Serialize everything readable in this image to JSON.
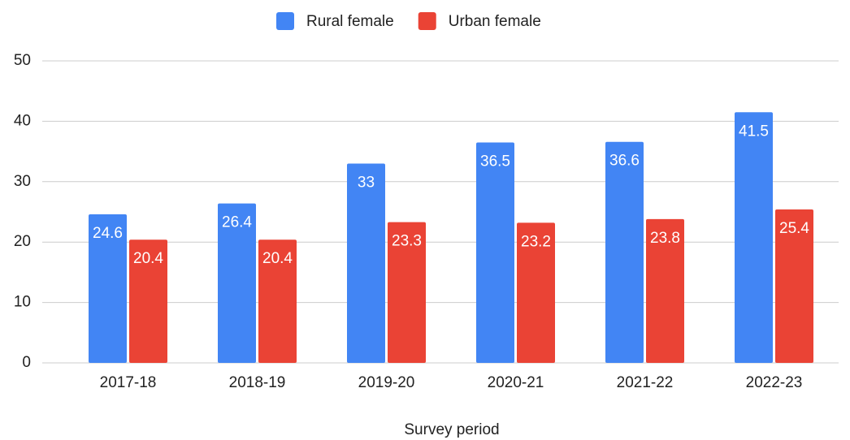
{
  "chart_data": {
    "type": "bar",
    "x_label": "Survey period",
    "categories": [
      "2017-18",
      "2018-19",
      "2019-20",
      "2020-21",
      "2021-22",
      "2022-23"
    ],
    "series": [
      {
        "name": "Rural female",
        "color": "#4285f4",
        "values": [
          24.6,
          26.4,
          33,
          36.5,
          36.6,
          41.5
        ]
      },
      {
        "name": "Urban female",
        "color": "#ea4335",
        "values": [
          20.4,
          20.4,
          23.3,
          23.2,
          23.8,
          25.4
        ]
      }
    ],
    "ylim": [
      0,
      50
    ],
    "yticks": [
      0,
      10,
      20,
      30,
      40,
      50
    ],
    "grid": true,
    "legend": "top"
  }
}
